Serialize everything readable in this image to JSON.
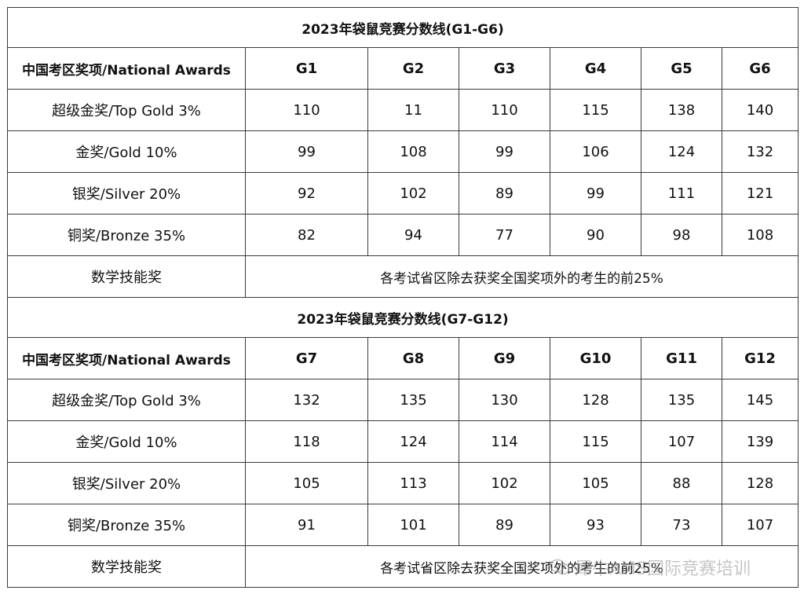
{
  "table1": {
    "title": "2023年袋鼠竞赛分数线(G1-G6)",
    "header": [
      "中国考区奖项/National Awards",
      "G1",
      "G2",
      "G3",
      "G4",
      "G5",
      "G6"
    ],
    "rows": [
      {
        "award": "超级金奖/Top Gold 3%",
        "values": [
          "110",
          "11",
          "110",
          "115",
          "138",
          "140"
        ]
      },
      {
        "award": "金奖/Gold 10%",
        "values": [
          "99",
          "108",
          "99",
          "106",
          "124",
          "132"
        ]
      },
      {
        "award": "银奖/Silver 20%",
        "values": [
          "92",
          "102",
          "89",
          "99",
          "111",
          "121"
        ]
      },
      {
        "award": "铜奖/Bronze 35%",
        "values": [
          "82",
          "94",
          "77",
          "90",
          "98",
          "108"
        ]
      }
    ],
    "note_label": "数学技能奖",
    "note_text": "各考试省区除去获奖全国奖项外的考生的前25%"
  },
  "table2": {
    "title": "2023年袋鼠竞赛分数线(G7-G12)",
    "header": [
      "中国考区奖项/National Awards",
      "G7",
      "G8",
      "G9",
      "G10",
      "G11",
      "G12"
    ],
    "rows": [
      {
        "award": "超级金奖/Top Gold 3%",
        "values": [
          "132",
          "135",
          "130",
          "128",
          "135",
          "145"
        ]
      },
      {
        "award": "金奖/Gold 10%",
        "values": [
          "118",
          "124",
          "114",
          "115",
          "107",
          "139"
        ]
      },
      {
        "award": "银奖/Silver 20%",
        "values": [
          "105",
          "113",
          "102",
          "105",
          "88",
          "128"
        ]
      },
      {
        "award": "铜奖/Bronze 35%",
        "values": [
          "91",
          "101",
          "89",
          "93",
          "73",
          "107"
        ]
      }
    ],
    "note_label": "数学技能奖",
    "note_text": "各考试省区除去获奖全国奖项外的考生的前25%"
  },
  "watermark": {
    "text": "犀牛AMS国际竞赛培训",
    "icon": "wechat-icon"
  }
}
